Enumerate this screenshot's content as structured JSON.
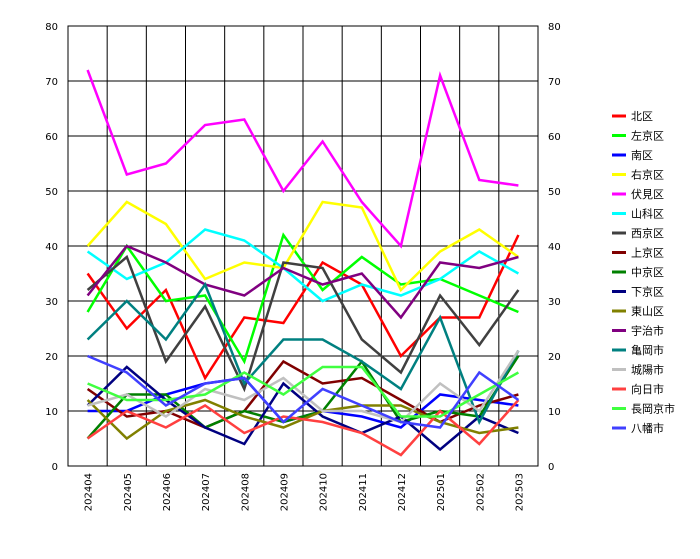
{
  "chart_data": {
    "type": "line",
    "x": [
      "202404",
      "202405",
      "202406",
      "202407",
      "202408",
      "202409",
      "202410",
      "202411",
      "202412",
      "202501",
      "202502",
      "202503"
    ],
    "ylim": [
      0,
      80
    ],
    "yticks": [
      0,
      10,
      20,
      30,
      40,
      50,
      60,
      70,
      80
    ],
    "ylim_right": [
      0,
      80
    ],
    "grid": true,
    "legend_position": "right",
    "series": [
      {
        "name": "北区",
        "color": "#ff0000",
        "values": [
          35,
          25,
          32,
          16,
          27,
          26,
          37,
          33,
          20,
          27,
          27,
          42
        ]
      },
      {
        "name": "左京区",
        "color": "#00ff00",
        "values": [
          28,
          40,
          30,
          31,
          19,
          42,
          32,
          38,
          33,
          34,
          31,
          28
        ]
      },
      {
        "name": "南区",
        "color": "#0000ff",
        "values": [
          10,
          10,
          13,
          15,
          16,
          8,
          10,
          9,
          7,
          13,
          12,
          11
        ]
      },
      {
        "name": "右京区",
        "color": "#ffff00",
        "values": [
          40,
          48,
          44,
          34,
          37,
          36,
          48,
          47,
          32,
          39,
          43,
          38
        ]
      },
      {
        "name": "伏見区",
        "color": "#ff00ff",
        "values": [
          72,
          53,
          55,
          62,
          63,
          50,
          59,
          48,
          40,
          71,
          52,
          51
        ]
      },
      {
        "name": "山科区",
        "color": "#00ffff",
        "values": [
          39,
          34,
          37,
          43,
          41,
          36,
          30,
          33,
          31,
          34,
          39,
          35
        ]
      },
      {
        "name": "西京区",
        "color": "#404040",
        "values": [
          32,
          38,
          19,
          29,
          14,
          37,
          36,
          23,
          17,
          31,
          22,
          32
        ]
      },
      {
        "name": "上京区",
        "color": "#800000",
        "values": [
          14,
          9,
          10,
          7,
          10,
          19,
          15,
          16,
          12,
          8,
          11,
          13
        ]
      },
      {
        "name": "中京区",
        "color": "#008000",
        "values": [
          5,
          13,
          13,
          7,
          10,
          8,
          10,
          19,
          8,
          10,
          9,
          20
        ]
      },
      {
        "name": "下京区",
        "color": "#000080",
        "values": [
          11,
          18,
          12,
          7,
          4,
          15,
          9,
          6,
          9,
          3,
          9,
          6
        ]
      },
      {
        "name": "東山区",
        "color": "#808000",
        "values": [
          12,
          5,
          10,
          12,
          9,
          7,
          10,
          11,
          11,
          8,
          6,
          7
        ]
      },
      {
        "name": "宇治市",
        "color": "#800080",
        "values": [
          31,
          40,
          37,
          33,
          31,
          36,
          33,
          35,
          27,
          37,
          36,
          38
        ]
      },
      {
        "name": "亀岡市",
        "color": "#008080",
        "values": [
          23,
          30,
          23,
          33,
          15,
          23,
          23,
          19,
          14,
          27,
          8,
          21
        ]
      },
      {
        "name": "城陽市",
        "color": "#c0c0c0",
        "values": [
          11,
          13,
          9,
          14,
          12,
          16,
          10,
          10,
          8,
          15,
          10,
          21
        ]
      },
      {
        "name": "向日市",
        "color": "#ff4040",
        "values": [
          5,
          10,
          7,
          11,
          6,
          9,
          8,
          6,
          2,
          10,
          4,
          12
        ]
      },
      {
        "name": "長岡京市",
        "color": "#40ff40",
        "values": [
          15,
          12,
          12,
          13,
          17,
          13,
          18,
          18,
          9,
          9,
          13,
          17
        ]
      },
      {
        "name": "八幡市",
        "color": "#4040ff",
        "values": [
          20,
          17,
          11,
          15,
          16,
          8,
          14,
          11,
          8,
          7,
          17,
          12
        ]
      }
    ]
  }
}
